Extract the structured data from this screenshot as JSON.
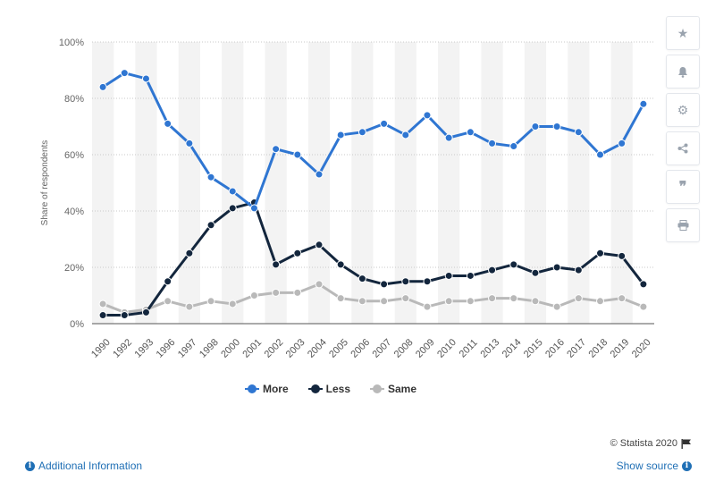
{
  "chart_data": {
    "type": "line",
    "categories": [
      "1990",
      "1992",
      "1993",
      "1996",
      "1997",
      "1998",
      "2000",
      "2001",
      "2002",
      "2003",
      "2004",
      "2005",
      "2006",
      "2007",
      "2008",
      "2009",
      "2010",
      "2011",
      "2013",
      "2014",
      "2015",
      "2016",
      "2017",
      "2018",
      "2019",
      "2020"
    ],
    "series": [
      {
        "name": "More",
        "color": "#2f76d2",
        "values": [
          84,
          89,
          87,
          71,
          64,
          52,
          47,
          41,
          62,
          60,
          53,
          67,
          68,
          71,
          67,
          74,
          66,
          68,
          64,
          63,
          70,
          70,
          68,
          60,
          64,
          78
        ]
      },
      {
        "name": "Less",
        "color": "#13263d",
        "values": [
          3,
          3,
          4,
          15,
          25,
          35,
          41,
          43,
          21,
          25,
          28,
          21,
          16,
          14,
          15,
          15,
          17,
          17,
          19,
          21,
          18,
          20,
          19,
          25,
          24,
          14
        ]
      },
      {
        "name": "Same",
        "color": "#b9b9b9",
        "values": [
          7,
          4,
          5,
          8,
          6,
          8,
          7,
          10,
          11,
          11,
          14,
          9,
          8,
          8,
          9,
          6,
          8,
          8,
          9,
          9,
          8,
          6,
          9,
          8,
          9,
          6
        ]
      }
    ],
    "ylabel": "Share of respondents",
    "ylim": [
      0,
      100
    ],
    "yticks": [
      "0%",
      "20%",
      "40%",
      "60%",
      "80%",
      "100%"
    ],
    "grid": true,
    "legend_position": "bottom"
  },
  "footer": {
    "copyright": "© Statista 2020",
    "additional_info": "Additional Information",
    "show_source": "Show source"
  },
  "toolbar": {
    "icons": [
      "star-icon",
      "bell-icon",
      "gear-icon",
      "share-icon",
      "quote-icon",
      "print-icon"
    ]
  }
}
